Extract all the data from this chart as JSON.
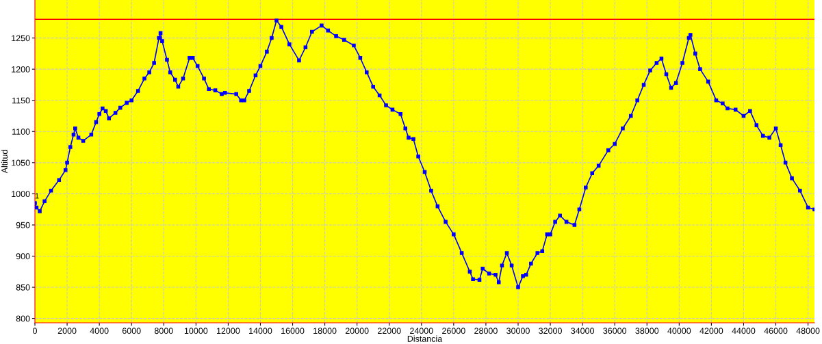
{
  "chart_data": {
    "type": "line",
    "xlabel": "Distancia",
    "ylabel": "Altitud",
    "xlim": [
      0,
      48400
    ],
    "ylim": [
      793,
      1311
    ],
    "xticks": [
      0,
      2000,
      4000,
      6000,
      8000,
      10000,
      12000,
      14000,
      16000,
      18000,
      20000,
      22000,
      24000,
      26000,
      28000,
      30000,
      32000,
      34000,
      36000,
      38000,
      40000,
      42000,
      44000,
      46000,
      48000
    ],
    "yticks": [
      800,
      850,
      900,
      950,
      1000,
      1050,
      1100,
      1150,
      1200,
      1250
    ],
    "grid": true,
    "marker": "square",
    "line_style": "solid",
    "ref_lines": [
      {
        "axis": "y",
        "value": 1280,
        "label": null,
        "color": "#ff0000"
      }
    ],
    "annotations": [
      {
        "text": "1",
        "x": 0,
        "y": 990
      }
    ],
    "series": [
      {
        "color": "#0000ff",
        "x": [
          0,
          100,
          300,
          600,
          1000,
          1500,
          1900,
          2000,
          2200,
          2400,
          2500,
          2700,
          3000,
          3500,
          3800,
          4000,
          4200,
          4400,
          4600,
          5000,
          5300,
          5700,
          6000,
          6400,
          6800,
          7100,
          7400,
          7700,
          7800,
          7900,
          8200,
          8400,
          8700,
          8900,
          9200,
          9600,
          9800,
          10100,
          10500,
          10800,
          11200,
          11600,
          11800,
          12500,
          12800,
          13000,
          13300,
          13700,
          14000,
          14400,
          14700,
          15000,
          15300,
          15800,
          16400,
          16800,
          17200,
          17800,
          18200,
          18700,
          19200,
          19800,
          20200,
          20600,
          21000,
          21400,
          21800,
          22200,
          22700,
          23000,
          23200,
          23500,
          23800,
          24200,
          24600,
          25000,
          25500,
          26000,
          26500,
          27000,
          27200,
          27600,
          27800,
          28200,
          28600,
          28800,
          29000,
          29300,
          29600,
          30000,
          30300,
          30500,
          30800,
          31200,
          31500,
          31800,
          32000,
          32300,
          32600,
          33000,
          33500,
          33800,
          34200,
          34600,
          35000,
          35600,
          36000,
          36500,
          37000,
          37400,
          37800,
          38200,
          38600,
          38900,
          39200,
          39500,
          39800,
          40200,
          40600,
          40700,
          41000,
          41300,
          41800,
          42300,
          42700,
          43000,
          43500,
          44000,
          44400,
          44800,
          45200,
          45600,
          46000,
          46300,
          46600,
          47000,
          47500,
          48000,
          48400
        ],
        "values": [
          985,
          978,
          972,
          988,
          1005,
          1022,
          1038,
          1050,
          1075,
          1095,
          1105,
          1090,
          1085,
          1095,
          1115,
          1128,
          1137,
          1133,
          1121,
          1130,
          1138,
          1146,
          1150,
          1165,
          1185,
          1195,
          1210,
          1250,
          1258,
          1245,
          1215,
          1195,
          1183,
          1172,
          1185,
          1218,
          1218,
          1205,
          1185,
          1168,
          1166,
          1160,
          1162,
          1160,
          1150,
          1150,
          1165,
          1190,
          1205,
          1228,
          1250,
          1278,
          1268,
          1240,
          1214,
          1235,
          1260,
          1270,
          1262,
          1253,
          1247,
          1238,
          1218,
          1195,
          1172,
          1158,
          1142,
          1135,
          1128,
          1105,
          1090,
          1088,
          1060,
          1035,
          1005,
          980,
          955,
          935,
          905,
          875,
          863,
          862,
          880,
          872,
          870,
          858,
          885,
          905,
          885,
          850,
          868,
          870,
          888,
          905,
          908,
          935,
          935,
          955,
          965,
          955,
          950,
          975,
          1010,
          1033,
          1045,
          1070,
          1080,
          1105,
          1125,
          1150,
          1175,
          1198,
          1210,
          1217,
          1192,
          1170,
          1178,
          1210,
          1250,
          1255,
          1225,
          1200,
          1180,
          1150,
          1145,
          1137,
          1135,
          1125,
          1133,
          1110,
          1093,
          1090,
          1105,
          1078,
          1050,
          1025,
          1005,
          978,
          975
        ]
      }
    ]
  }
}
